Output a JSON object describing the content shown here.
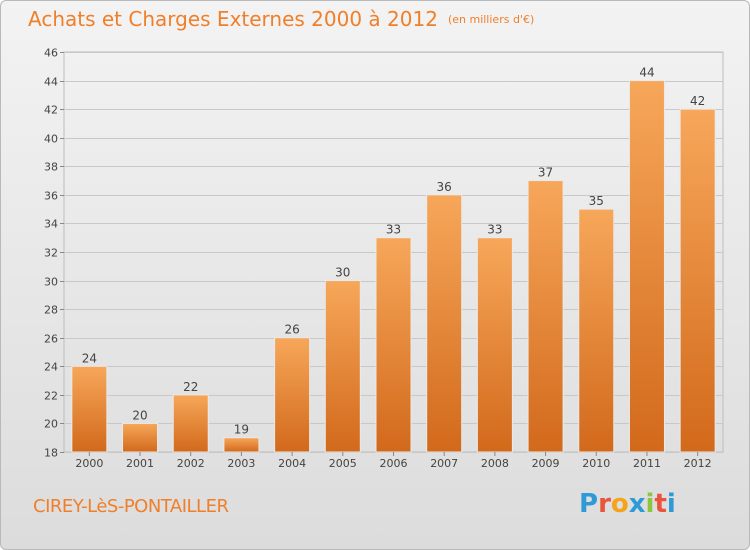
{
  "header": {
    "title": "Achats et Charges Externes 2000 à 2012",
    "unit": "(en milliers d'€)"
  },
  "footer": {
    "commune": "CIREY-LèS-PONTAILLER",
    "logo_letters": [
      "P",
      "r",
      "o",
      "x",
      "i",
      "t",
      "i"
    ],
    "logo_colors": [
      "#2f9bd6",
      "#e9553c",
      "#f4a31b",
      "#2f9bd6",
      "#8cc63f",
      "#e9553c",
      "#2f9bd6"
    ]
  },
  "chart_data": {
    "type": "bar",
    "title": "Achats et Charges Externes 2000 à 2012",
    "unit": "(en milliers d'€)",
    "categories": [
      "2000",
      "2001",
      "2002",
      "2003",
      "2004",
      "2005",
      "2006",
      "2007",
      "2008",
      "2009",
      "2010",
      "2011",
      "2012"
    ],
    "values": [
      24,
      20,
      22,
      19,
      26,
      30,
      33,
      36,
      33,
      37,
      35,
      44,
      42
    ],
    "ylim": [
      18,
      46
    ],
    "yticks": [
      18,
      20,
      22,
      24,
      26,
      28,
      30,
      32,
      34,
      36,
      38,
      40,
      42,
      44,
      46
    ],
    "grid": true,
    "bar_color_top": "#f7a75a",
    "bar_color_bottom": "#d2691b",
    "data_labels": true
  }
}
